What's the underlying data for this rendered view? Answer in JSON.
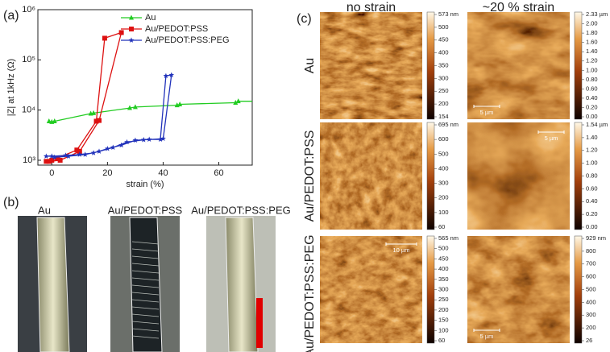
{
  "chart_data": {
    "type": "line",
    "xlabel": "strain (%)",
    "ylabel": "|Z| at 1kHz (Ω)",
    "xlim": [
      -5,
      72
    ],
    "xticks": [
      0,
      20,
      40,
      60
    ],
    "ylim": [
      800,
      1000000
    ],
    "log_y": true,
    "yticks": [
      {
        "value": 1000,
        "label": "10³"
      },
      {
        "value": 10000,
        "label": "10⁴"
      },
      {
        "value": 100000,
        "label": "10⁵"
      },
      {
        "value": 1000000,
        "label": "10⁶"
      }
    ],
    "legend": "upper left",
    "series": [
      {
        "name": "Au",
        "color": "#22cc22",
        "marker": "triangle",
        "x": [
          -1,
          0,
          1,
          14,
          15,
          28,
          30,
          45,
          46,
          66,
          67,
          72
        ],
        "values": [
          6000,
          5800,
          6000,
          8500,
          8700,
          11000,
          11500,
          12500,
          13000,
          14000,
          15000,
          15000
        ]
      },
      {
        "name": "Au/PEDOT:PSS",
        "color": "#dd1111",
        "marker": "square",
        "x": [
          -2,
          0,
          2,
          9,
          16,
          19,
          25,
          17,
          10,
          3,
          -1
        ],
        "values": [
          950,
          1000,
          1100,
          1600,
          6000,
          270000,
          350000,
          6200,
          1500,
          1000,
          950
        ]
      },
      {
        "name": "Au/PEDOT:PSS:PEG",
        "color": "#2233bb",
        "marker": "star",
        "x": [
          -2,
          0,
          5,
          10,
          15,
          20,
          25,
          30,
          35,
          39,
          41,
          43,
          40,
          33,
          27,
          22,
          17,
          12,
          6,
          1
        ],
        "values": [
          1200,
          1200,
          1250,
          1300,
          1400,
          1700,
          2000,
          2500,
          2600,
          2600,
          48000,
          50000,
          2700,
          2550,
          2300,
          1800,
          1500,
          1300,
          1200,
          1150
        ]
      }
    ]
  },
  "panels": {
    "a": "(a)",
    "b": "(b)",
    "c": "(c)"
  },
  "photos": [
    "Au",
    "Au/PEDOT:PSS",
    "Au/PEDOT:PSS:PEG"
  ],
  "afm": {
    "columns": [
      "no strain",
      "~20 % strain"
    ],
    "rows": [
      "Au",
      "Au/PEDOT:PSS",
      "Au/PEDOT:PSS:PEG"
    ],
    "colorbars": [
      [
        "573 nm",
        "500",
        "450",
        "400",
        "350",
        "300",
        "250",
        "200",
        "154"
      ],
      [
        "2.33 µm",
        "2.00",
        "1.80",
        "1.60",
        "1.40",
        "1.20",
        "1.00",
        "0.80",
        "0.60",
        "0.40",
        "0.20",
        "0.00"
      ],
      [
        "695 nm",
        "600",
        "500",
        "400",
        "300",
        "200",
        "100",
        "60"
      ],
      [
        "1.54 µm",
        "1.40",
        "1.20",
        "1.00",
        "0.80",
        "0.60",
        "0.40",
        "0.20",
        "0.00"
      ],
      [
        "565 nm",
        "500",
        "450",
        "400",
        "350",
        "300",
        "250",
        "200",
        "150",
        "100",
        "60"
      ],
      [
        "929 nm",
        "800",
        "700",
        "600",
        "500",
        "400",
        "300",
        "200",
        "26"
      ]
    ],
    "scalebars": {
      "1": "5 µm",
      "3": "5 µm",
      "4": "10 µm",
      "5": "5 µm"
    }
  }
}
